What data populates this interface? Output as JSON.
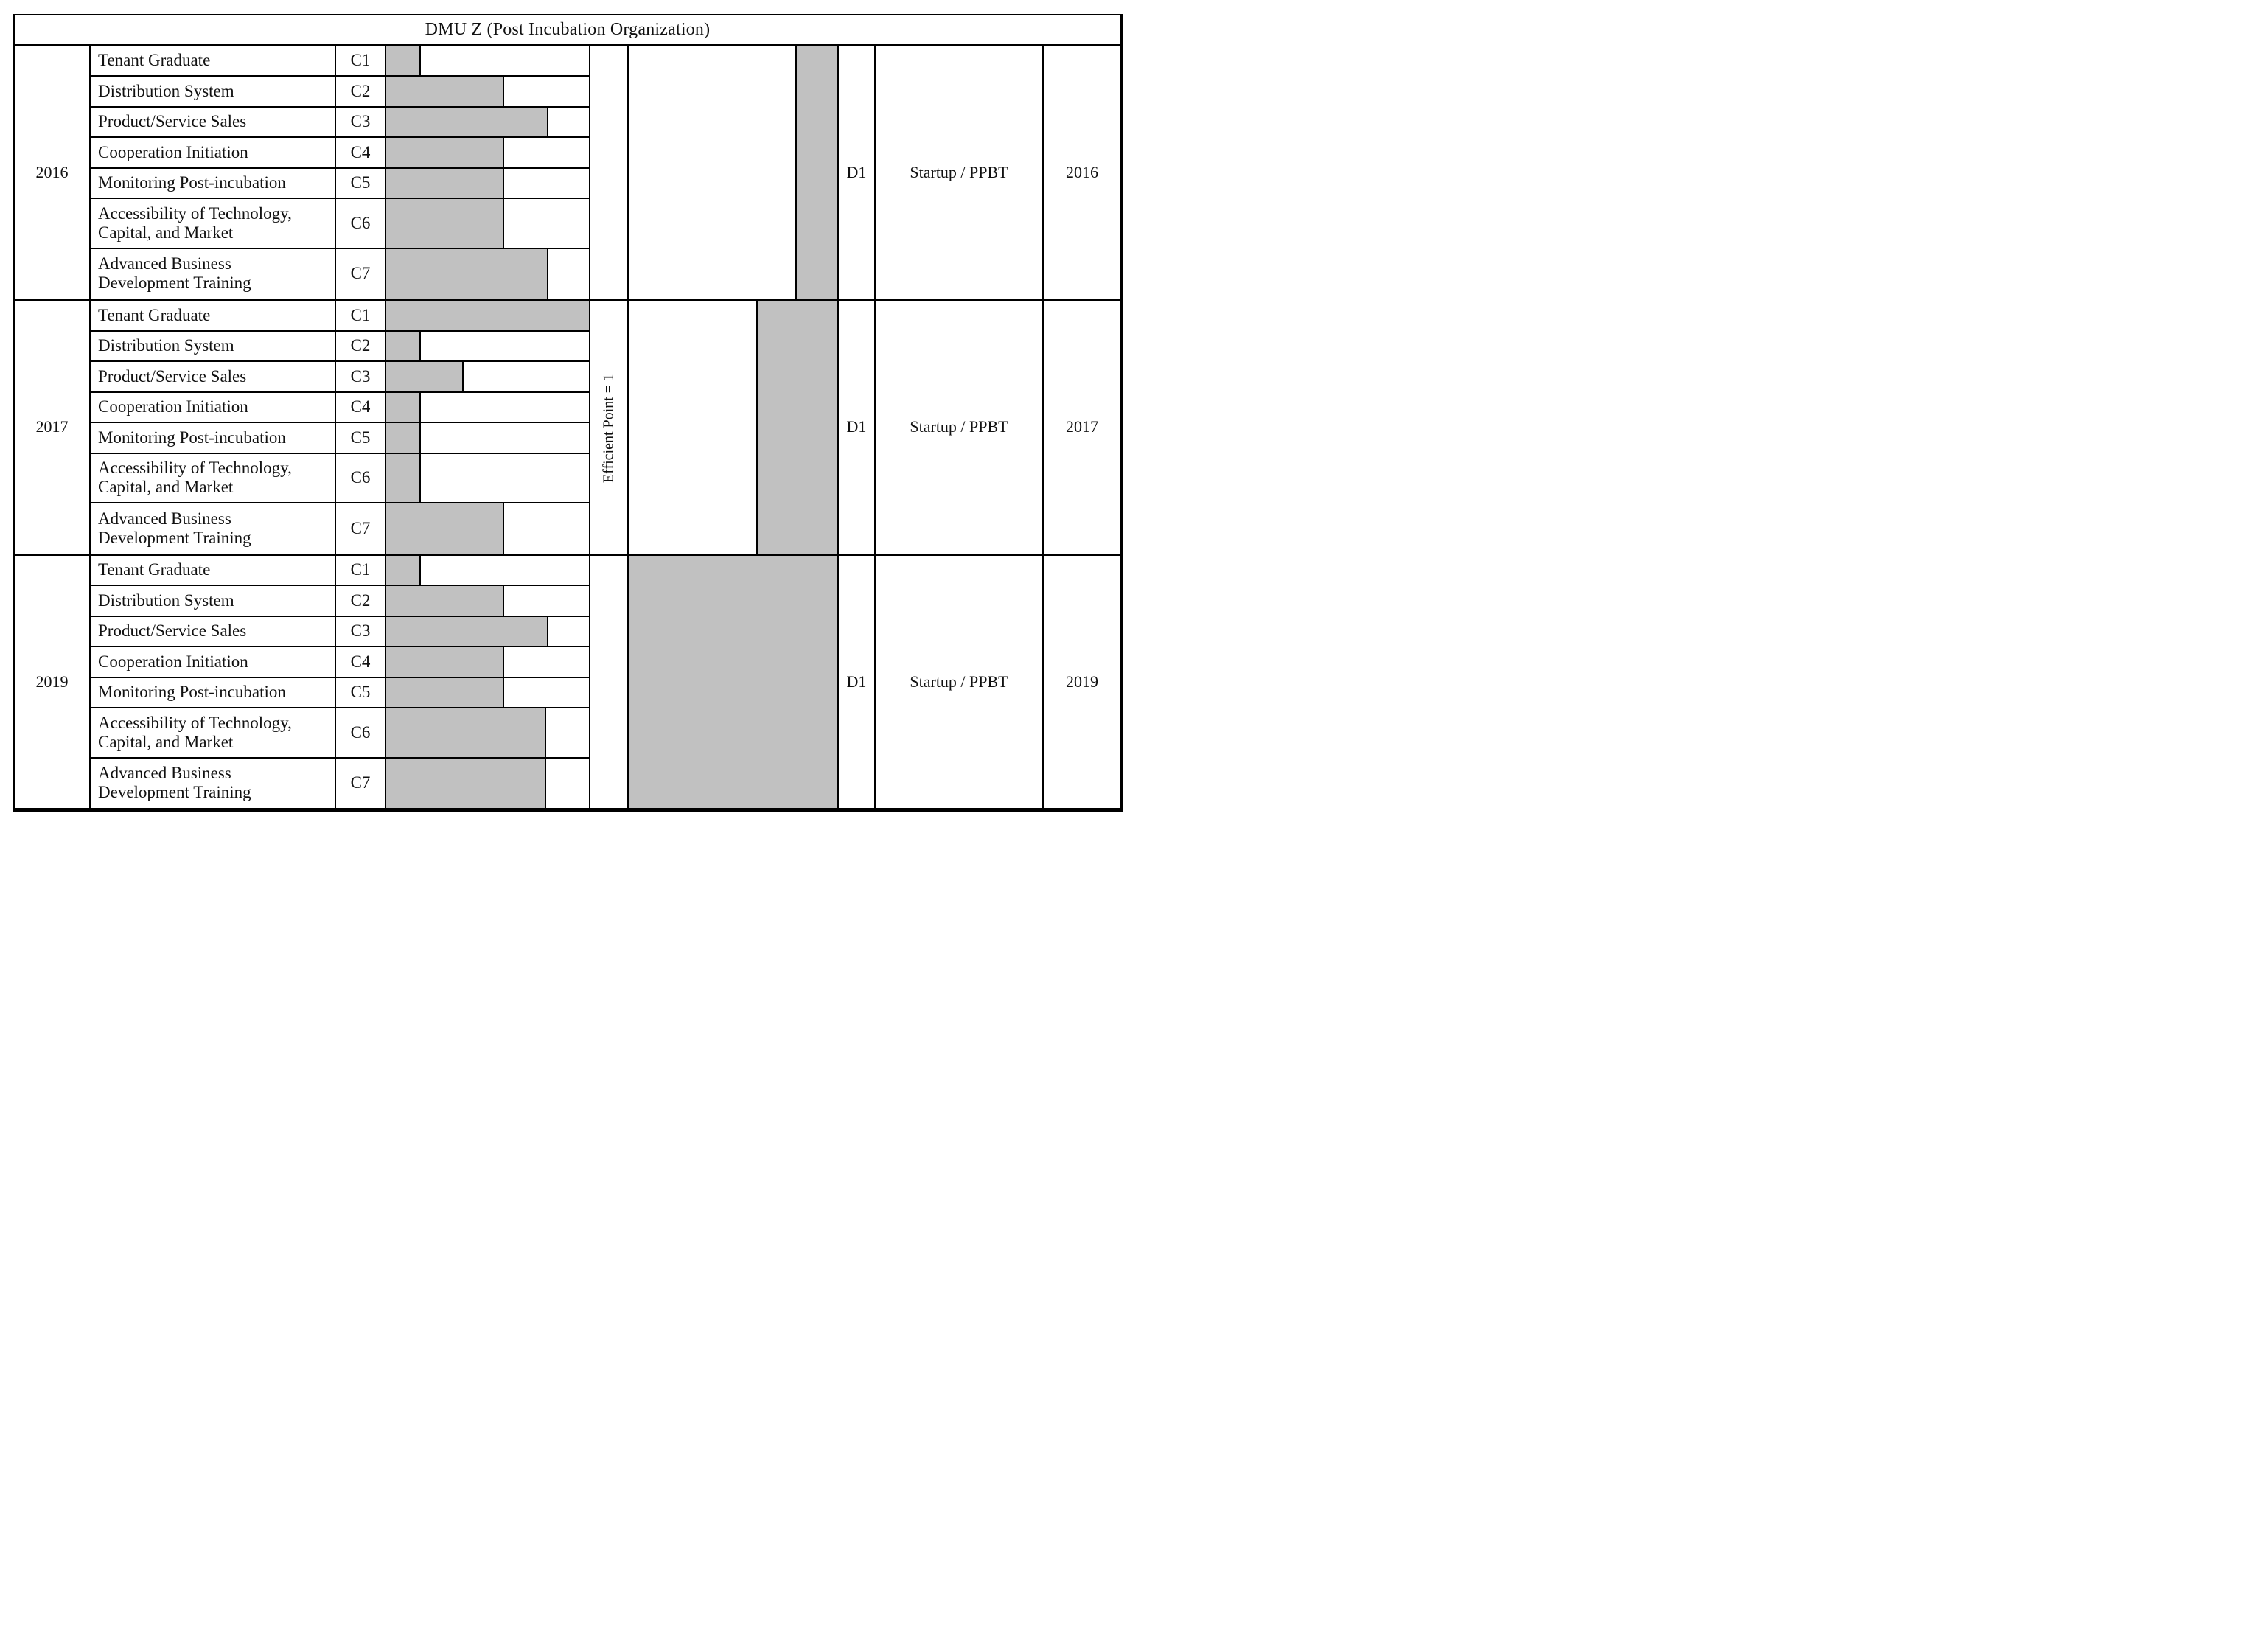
{
  "title": "DMU Z (Post Incubation Organization)",
  "efficient_point_label": "Efficient Point = 1",
  "colors": {
    "bar_fill": "#c1c1c1",
    "line": "#000000",
    "background": "#ffffff"
  },
  "criteria": [
    {
      "code": "C1",
      "label": "Tenant Graduate"
    },
    {
      "code": "C2",
      "label": "Distribution System"
    },
    {
      "code": "C3",
      "label": "Product/Service Sales"
    },
    {
      "code": "C4",
      "label": "Cooperation Initiation"
    },
    {
      "code": "C5",
      "label": "Monitoring Post-incubation"
    },
    {
      "code": "C6",
      "label": "Accessibility of Technology,\nCapital, and Market"
    },
    {
      "code": "C7",
      "label": "Advanced Business\nDevelopment Training"
    }
  ],
  "blocks": [
    {
      "year": "2016",
      "dmu": "D1",
      "dmu_label": "Startup / PPBT",
      "criteria_scores": [
        0.17,
        0.58,
        0.8,
        0.58,
        0.58,
        0.58,
        0.8
      ],
      "efficiency": 0.2
    },
    {
      "year": "2017",
      "dmu": "D1",
      "dmu_label": "Startup / PPBT",
      "criteria_scores": [
        1.0,
        0.17,
        0.38,
        0.17,
        0.17,
        0.17,
        0.58
      ],
      "efficiency": 0.39
    },
    {
      "year": "2019",
      "dmu": "D1",
      "dmu_label": "Startup / PPBT",
      "criteria_scores": [
        0.17,
        0.58,
        0.8,
        0.58,
        0.58,
        0.79,
        0.79
      ],
      "efficiency": 1.0
    }
  ],
  "chart_data": [
    {
      "type": "bar",
      "orientation": "horizontal",
      "title": "DMU Z (Post Incubation Organization) — criteria scores per year",
      "categories": [
        "C1 Tenant Graduate",
        "C2 Distribution System",
        "C3 Product/Service Sales",
        "C4 Cooperation Initiation",
        "C5 Monitoring Post-incubation",
        "C6 Accessibility of Technology, Capital, and Market",
        "C7 Advanced Business Development Training"
      ],
      "series": [
        {
          "name": "2016",
          "values": [
            0.17,
            0.58,
            0.8,
            0.58,
            0.58,
            0.58,
            0.8
          ]
        },
        {
          "name": "2017",
          "values": [
            1.0,
            0.17,
            0.38,
            0.17,
            0.17,
            0.17,
            0.58
          ]
        },
        {
          "name": "2019",
          "values": [
            0.17,
            0.58,
            0.8,
            0.58,
            0.58,
            0.79,
            0.79
          ]
        }
      ],
      "xlabel": "",
      "ylabel": "",
      "xlim": [
        0,
        1
      ],
      "grid": false,
      "legend_position": "none"
    },
    {
      "type": "bar",
      "orientation": "horizontal",
      "anchor": "right",
      "title": "DMU D1 (Startup / PPBT) efficiency per year, bars grow toward Efficient Point = 1",
      "categories": [
        "2016",
        "2017",
        "2019"
      ],
      "values": [
        0.2,
        0.39,
        1.0
      ],
      "reference_line_label": "Efficient Point = 1",
      "xlim": [
        0,
        1
      ],
      "grid": false,
      "legend_position": "none"
    }
  ]
}
